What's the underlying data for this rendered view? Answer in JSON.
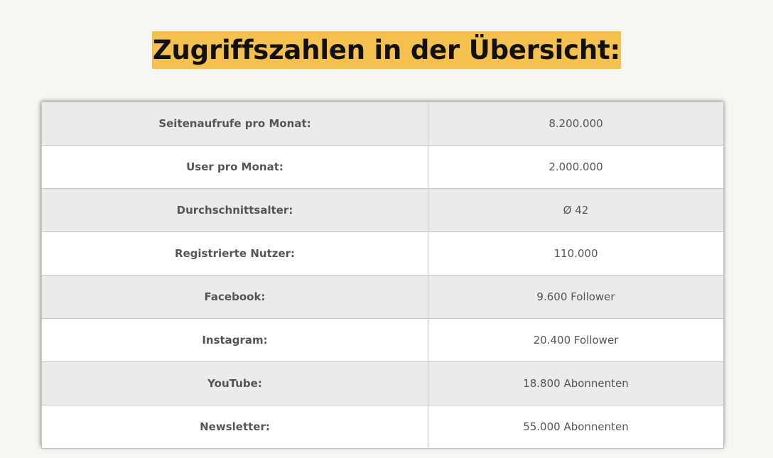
{
  "page": {
    "title": "Zugriffszahlen in der Übersicht:"
  },
  "colors": {
    "title_highlight": "#f4c14f",
    "page_background": "#f7f6f2",
    "row_shaded": "#ebebeb",
    "row_plain": "#ffffff",
    "text": "#555555"
  },
  "stats": {
    "rows": [
      {
        "label": "Seitenaufrufe pro Monat:",
        "value": "8.200.000"
      },
      {
        "label": "User pro Monat:",
        "value": "2.000.000"
      },
      {
        "label": "Durchschnittsalter:",
        "value": "Ø 42"
      },
      {
        "label": "Registrierte Nutzer:",
        "value": "110.000"
      },
      {
        "label": "Facebook:",
        "value": "9.600 Follower"
      },
      {
        "label": "Instagram:",
        "value": "20.400 Follower"
      },
      {
        "label": "YouTube:",
        "value": "18.800 Abonnenten"
      },
      {
        "label": "Newsletter:",
        "value": "55.000 Abonnenten"
      }
    ]
  }
}
